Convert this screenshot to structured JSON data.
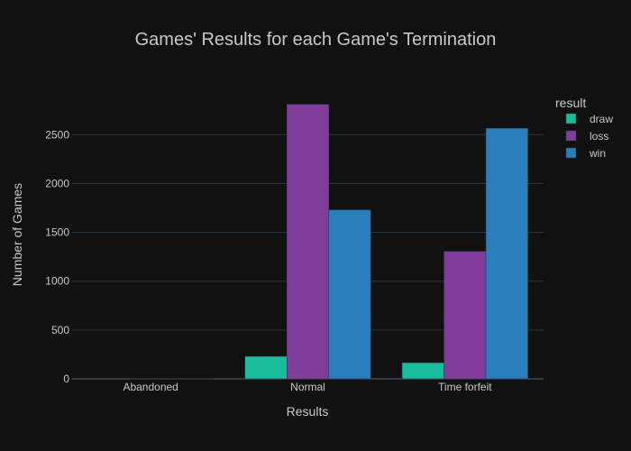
{
  "chart_data": {
    "type": "bar",
    "title": "Games' Results for each Game's Termination",
    "xlabel": "Results",
    "ylabel": "Number of Games",
    "categories": [
      "Abandoned",
      "Normal",
      "Time forfeit"
    ],
    "series": [
      {
        "name": "draw",
        "values": [
          0,
          230,
          165
        ],
        "color": "#1abc9c"
      },
      {
        "name": "loss",
        "values": [
          1,
          2810,
          1305
        ],
        "color": "#7f3c99"
      },
      {
        "name": "win",
        "values": [
          1,
          1730,
          2565
        ],
        "color": "#2a7fbb"
      }
    ],
    "ylim": [
      0,
      3000
    ],
    "yticks": [
      0,
      500,
      1000,
      1500,
      2000,
      2500
    ],
    "grid": true,
    "legend": {
      "title": "result",
      "placement": "right"
    },
    "bar_outline_color": "#2f3f52"
  }
}
